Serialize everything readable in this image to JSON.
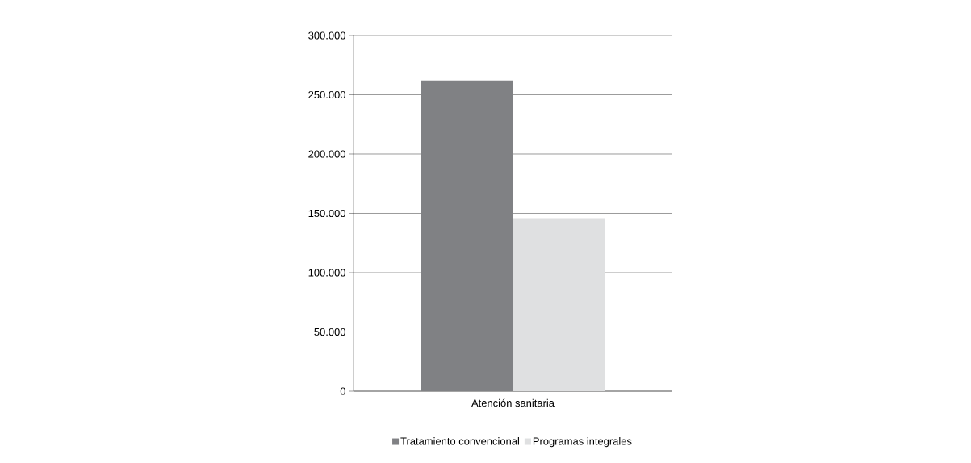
{
  "chart_data": {
    "type": "bar",
    "categories": [
      "Atención sanitaria"
    ],
    "series": [
      {
        "name": "Tratamiento convencional",
        "color": "#808184",
        "values": [
          262000
        ]
      },
      {
        "name": "Programas integrales",
        "color": "#dfe0e1",
        "values": [
          146000
        ]
      }
    ],
    "ylim": [
      0,
      300000
    ],
    "yticks": [
      {
        "value": 0,
        "label": "0"
      },
      {
        "value": 50000,
        "label": "50.000"
      },
      {
        "value": 100000,
        "label": "100.000"
      },
      {
        "value": 150000,
        "label": "150.000"
      },
      {
        "value": 200000,
        "label": "200.000"
      },
      {
        "value": 250000,
        "label": "250.000"
      },
      {
        "value": 300000,
        "label": "300.000"
      }
    ],
    "grid": "y",
    "legend": "bottom"
  }
}
